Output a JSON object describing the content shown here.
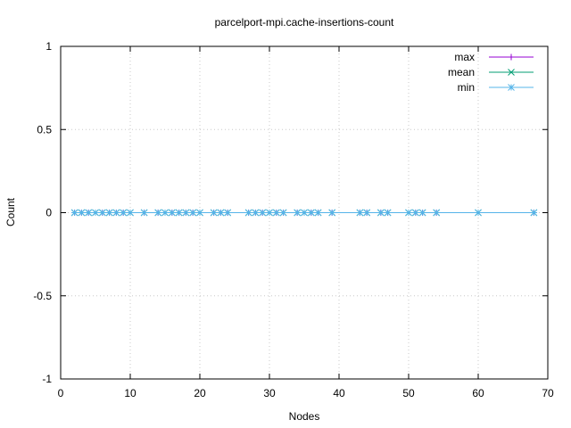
{
  "chart_data": {
    "type": "line",
    "title": "parcelport-mpi.cache-insertions-count",
    "xlabel": "Nodes",
    "ylabel": "Count",
    "xlim": [
      0,
      70
    ],
    "ylim": [
      -1,
      1
    ],
    "xticks": [
      0,
      10,
      20,
      30,
      40,
      50,
      60,
      70
    ],
    "xtick_labels": [
      "0",
      "10",
      "20",
      "30",
      "40",
      "50",
      "60",
      "70"
    ],
    "yticks": [
      -1,
      -0.5,
      0,
      0.5,
      1
    ],
    "ytick_labels": [
      "-1",
      "-0.5",
      "0",
      "0.5",
      "1"
    ],
    "grid": true,
    "legend_position": "top-right",
    "x": [
      2,
      3,
      4,
      5,
      6,
      7,
      8,
      9,
      10,
      12,
      14,
      15,
      16,
      17,
      18,
      19,
      20,
      22,
      23,
      24,
      27,
      28,
      29,
      30,
      31,
      32,
      34,
      35,
      36,
      37,
      39,
      43,
      44,
      46,
      47,
      50,
      51,
      52,
      54,
      60,
      68
    ],
    "series": [
      {
        "name": "max",
        "color": "#9400d3",
        "marker": "plus",
        "values": [
          0,
          0,
          0,
          0,
          0,
          0,
          0,
          0,
          0,
          0,
          0,
          0,
          0,
          0,
          0,
          0,
          0,
          0,
          0,
          0,
          0,
          0,
          0,
          0,
          0,
          0,
          0,
          0,
          0,
          0,
          0,
          0,
          0,
          0,
          0,
          0,
          0,
          0,
          0,
          0,
          0
        ]
      },
      {
        "name": "mean",
        "color": "#009e73",
        "marker": "cross",
        "values": [
          0,
          0,
          0,
          0,
          0,
          0,
          0,
          0,
          0,
          0,
          0,
          0,
          0,
          0,
          0,
          0,
          0,
          0,
          0,
          0,
          0,
          0,
          0,
          0,
          0,
          0,
          0,
          0,
          0,
          0,
          0,
          0,
          0,
          0,
          0,
          0,
          0,
          0,
          0,
          0,
          0
        ]
      },
      {
        "name": "min",
        "color": "#56b4e9",
        "marker": "star",
        "values": [
          0,
          0,
          0,
          0,
          0,
          0,
          0,
          0,
          0,
          0,
          0,
          0,
          0,
          0,
          0,
          0,
          0,
          0,
          0,
          0,
          0,
          0,
          0,
          0,
          0,
          0,
          0,
          0,
          0,
          0,
          0,
          0,
          0,
          0,
          0,
          0,
          0,
          0,
          0,
          0,
          0
        ]
      }
    ]
  }
}
